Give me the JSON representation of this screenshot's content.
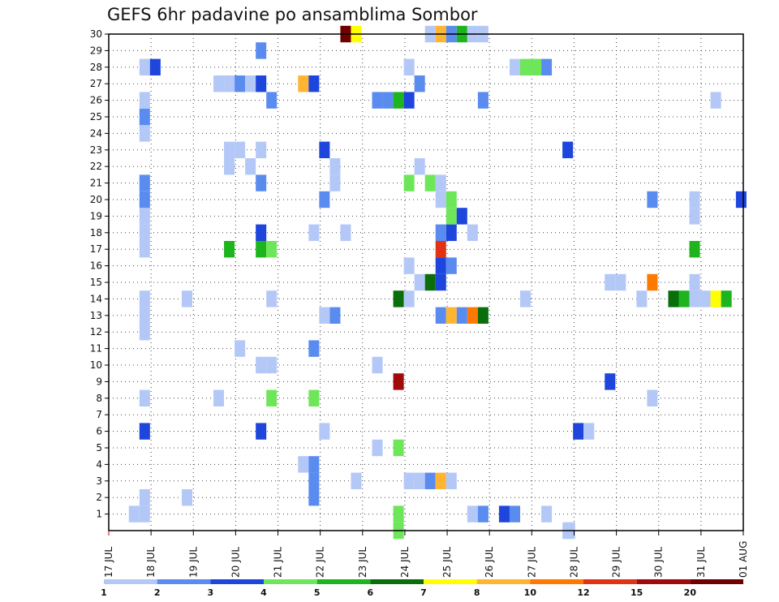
{
  "title": "GEFS 6hr padavine po ansamblima Sombor",
  "chart_data": {
    "type": "heatmap",
    "title": "GEFS 6hr padavine po ansamblima Sombor",
    "x_tick_labels": [
      "17 JUL",
      "18 JUL",
      "19 JUL",
      "20 JUL",
      "21 JUL",
      "22 JUL",
      "23 JUL",
      "24 JUL",
      "25 JUL",
      "26 JUL",
      "27 JUL",
      "28 JUL",
      "29 JUL",
      "30 JUL",
      "31 JUL",
      "01 AUG"
    ],
    "xlim_days": [
      0,
      15
    ],
    "y_tick_labels": [
      "1",
      "2",
      "3",
      "4",
      "5",
      "6",
      "7",
      "8",
      "9",
      "10",
      "11",
      "12",
      "13",
      "14",
      "15",
      "16",
      "17",
      "18",
      "19",
      "20",
      "21",
      "22",
      "23",
      "24",
      "25",
      "26",
      "27",
      "28",
      "29",
      "30"
    ],
    "ylim": [
      0,
      30
    ],
    "grid": true,
    "color_scale": {
      "labels": [
        "1",
        "2",
        "3",
        "4",
        "5",
        "6",
        "7",
        "8",
        "10",
        "12",
        "15",
        "20"
      ],
      "colors": [
        "#b4c8f8",
        "#5a8cf0",
        "#1e46dc",
        "#6ee65a",
        "#1eb41e",
        "#0a6e0a",
        "#ffff00",
        "#ffb432",
        "#ff7800",
        "#e13214",
        "#a00a0a",
        "#6e0000"
      ]
    },
    "cells": [
      [
        0.6,
        1,
        1
      ],
      [
        0.85,
        1,
        1
      ],
      [
        0.85,
        2,
        1
      ],
      [
        0.85,
        6,
        3
      ],
      [
        0.85,
        8,
        1
      ],
      [
        0.85,
        12,
        1
      ],
      [
        0.85,
        13,
        1
      ],
      [
        0.85,
        14,
        1
      ],
      [
        0.85,
        17,
        1
      ],
      [
        0.85,
        18,
        1
      ],
      [
        0.85,
        19,
        1
      ],
      [
        0.85,
        20,
        2
      ],
      [
        0.85,
        21,
        2
      ],
      [
        0.85,
        24,
        1
      ],
      [
        0.85,
        25,
        2
      ],
      [
        0.85,
        26,
        1
      ],
      [
        0.85,
        28,
        1
      ],
      [
        1.1,
        28,
        3
      ],
      [
        1.85,
        2,
        1
      ],
      [
        1.85,
        14,
        1
      ],
      [
        2.6,
        8,
        1
      ],
      [
        2.6,
        27,
        1
      ],
      [
        2.85,
        27,
        1
      ],
      [
        2.85,
        22,
        1
      ],
      [
        2.85,
        23,
        1
      ],
      [
        3.1,
        27,
        2
      ],
      [
        3.1,
        23,
        1
      ],
      [
        3.1,
        11,
        1
      ],
      [
        2.85,
        17,
        5
      ],
      [
        3.35,
        22,
        1
      ],
      [
        3.35,
        27,
        1
      ],
      [
        3.6,
        6,
        3
      ],
      [
        3.6,
        10,
        1
      ],
      [
        3.6,
        17,
        5
      ],
      [
        3.6,
        18,
        3
      ],
      [
        3.6,
        21,
        2
      ],
      [
        3.6,
        23,
        1
      ],
      [
        3.6,
        27,
        3
      ],
      [
        3.6,
        29,
        2
      ],
      [
        3.85,
        8,
        4
      ],
      [
        3.85,
        10,
        1
      ],
      [
        3.85,
        14,
        1
      ],
      [
        3.85,
        17,
        4
      ],
      [
        3.85,
        26,
        2
      ],
      [
        4.6,
        27,
        8
      ],
      [
        4.85,
        27,
        3
      ],
      [
        4.85,
        3,
        2
      ],
      [
        4.85,
        2,
        2
      ],
      [
        4.6,
        4,
        1
      ],
      [
        4.85,
        4,
        2
      ],
      [
        4.85,
        8,
        4
      ],
      [
        4.85,
        11,
        2
      ],
      [
        4.85,
        18,
        1
      ],
      [
        5.1,
        6,
        1
      ],
      [
        5.1,
        13,
        1
      ],
      [
        5.1,
        20,
        2
      ],
      [
        5.1,
        23,
        3
      ],
      [
        5.35,
        13,
        2
      ],
      [
        5.35,
        21,
        1
      ],
      [
        5.35,
        22,
        1
      ],
      [
        5.6,
        18,
        1
      ],
      [
        5.6,
        30,
        20
      ],
      [
        5.85,
        30,
        7
      ],
      [
        5.85,
        3,
        1
      ],
      [
        6.35,
        5,
        1
      ],
      [
        6.35,
        10,
        1
      ],
      [
        6.35,
        26,
        2
      ],
      [
        6.6,
        26,
        2
      ],
      [
        6.85,
        1,
        4
      ],
      [
        6.85,
        5,
        4
      ],
      [
        6.85,
        9,
        15
      ],
      [
        6.85,
        14,
        6
      ],
      [
        6.85,
        26,
        5
      ],
      [
        7.1,
        3,
        1
      ],
      [
        7.1,
        14,
        1
      ],
      [
        7.1,
        16,
        1
      ],
      [
        7.1,
        21,
        4
      ],
      [
        7.1,
        26,
        3
      ],
      [
        7.1,
        28,
        1
      ],
      [
        7.35,
        3,
        1
      ],
      [
        7.35,
        15,
        1
      ],
      [
        7.35,
        22,
        1
      ],
      [
        7.35,
        27,
        2
      ],
      [
        7.6,
        3,
        2
      ],
      [
        7.6,
        15,
        6
      ],
      [
        7.6,
        21,
        4
      ],
      [
        7.6,
        30,
        1
      ],
      [
        7.85,
        3,
        8
      ],
      [
        7.85,
        13,
        2
      ],
      [
        7.85,
        15,
        3
      ],
      [
        7.85,
        16,
        3
      ],
      [
        7.85,
        17,
        12
      ],
      [
        7.85,
        18,
        2
      ],
      [
        7.85,
        20,
        1
      ],
      [
        7.85,
        21,
        1
      ],
      [
        7.85,
        30,
        8
      ],
      [
        8.1,
        3,
        1
      ],
      [
        8.1,
        13,
        8
      ],
      [
        8.1,
        16,
        2
      ],
      [
        8.1,
        18,
        3
      ],
      [
        8.1,
        19,
        4
      ],
      [
        8.1,
        20,
        4
      ],
      [
        8.1,
        30,
        2
      ],
      [
        8.35,
        13,
        2
      ],
      [
        8.35,
        19,
        3
      ],
      [
        8.35,
        30,
        5
      ],
      [
        8.6,
        1,
        1
      ],
      [
        8.6,
        13,
        10
      ],
      [
        8.6,
        18,
        1
      ],
      [
        8.6,
        30,
        1
      ],
      [
        8.85,
        1,
        2
      ],
      [
        8.85,
        13,
        6
      ],
      [
        8.85,
        26,
        2
      ],
      [
        8.85,
        30,
        1
      ],
      [
        9.35,
        1,
        3
      ],
      [
        9.6,
        1,
        2
      ],
      [
        9.6,
        28,
        1
      ],
      [
        9.85,
        28,
        4
      ],
      [
        9.85,
        14,
        1
      ],
      [
        10.1,
        28,
        4
      ],
      [
        10.35,
        28,
        2
      ],
      [
        10.35,
        1,
        1
      ],
      [
        10.85,
        0,
        1
      ],
      [
        10.85,
        23,
        3
      ],
      [
        11.1,
        6,
        3
      ],
      [
        11.35,
        6,
        1
      ],
      [
        11.85,
        9,
        3
      ],
      [
        11.85,
        15,
        1
      ],
      [
        12.1,
        15,
        1
      ],
      [
        12.6,
        14,
        1
      ],
      [
        12.85,
        8,
        1
      ],
      [
        12.85,
        15,
        10
      ],
      [
        12.85,
        20,
        2
      ],
      [
        13.35,
        14,
        6
      ],
      [
        13.6,
        14,
        5
      ],
      [
        13.85,
        14,
        1
      ],
      [
        13.85,
        15,
        1
      ],
      [
        13.85,
        17,
        5
      ],
      [
        13.85,
        19,
        1
      ],
      [
        13.85,
        20,
        1
      ],
      [
        14.1,
        14,
        1
      ],
      [
        14.35,
        14,
        7
      ],
      [
        14.6,
        14,
        5
      ],
      [
        14.35,
        26,
        1
      ],
      [
        14.95,
        20,
        3
      ],
      [
        6.85,
        0,
        4
      ],
      [
        10.9,
        0,
        1
      ]
    ]
  }
}
